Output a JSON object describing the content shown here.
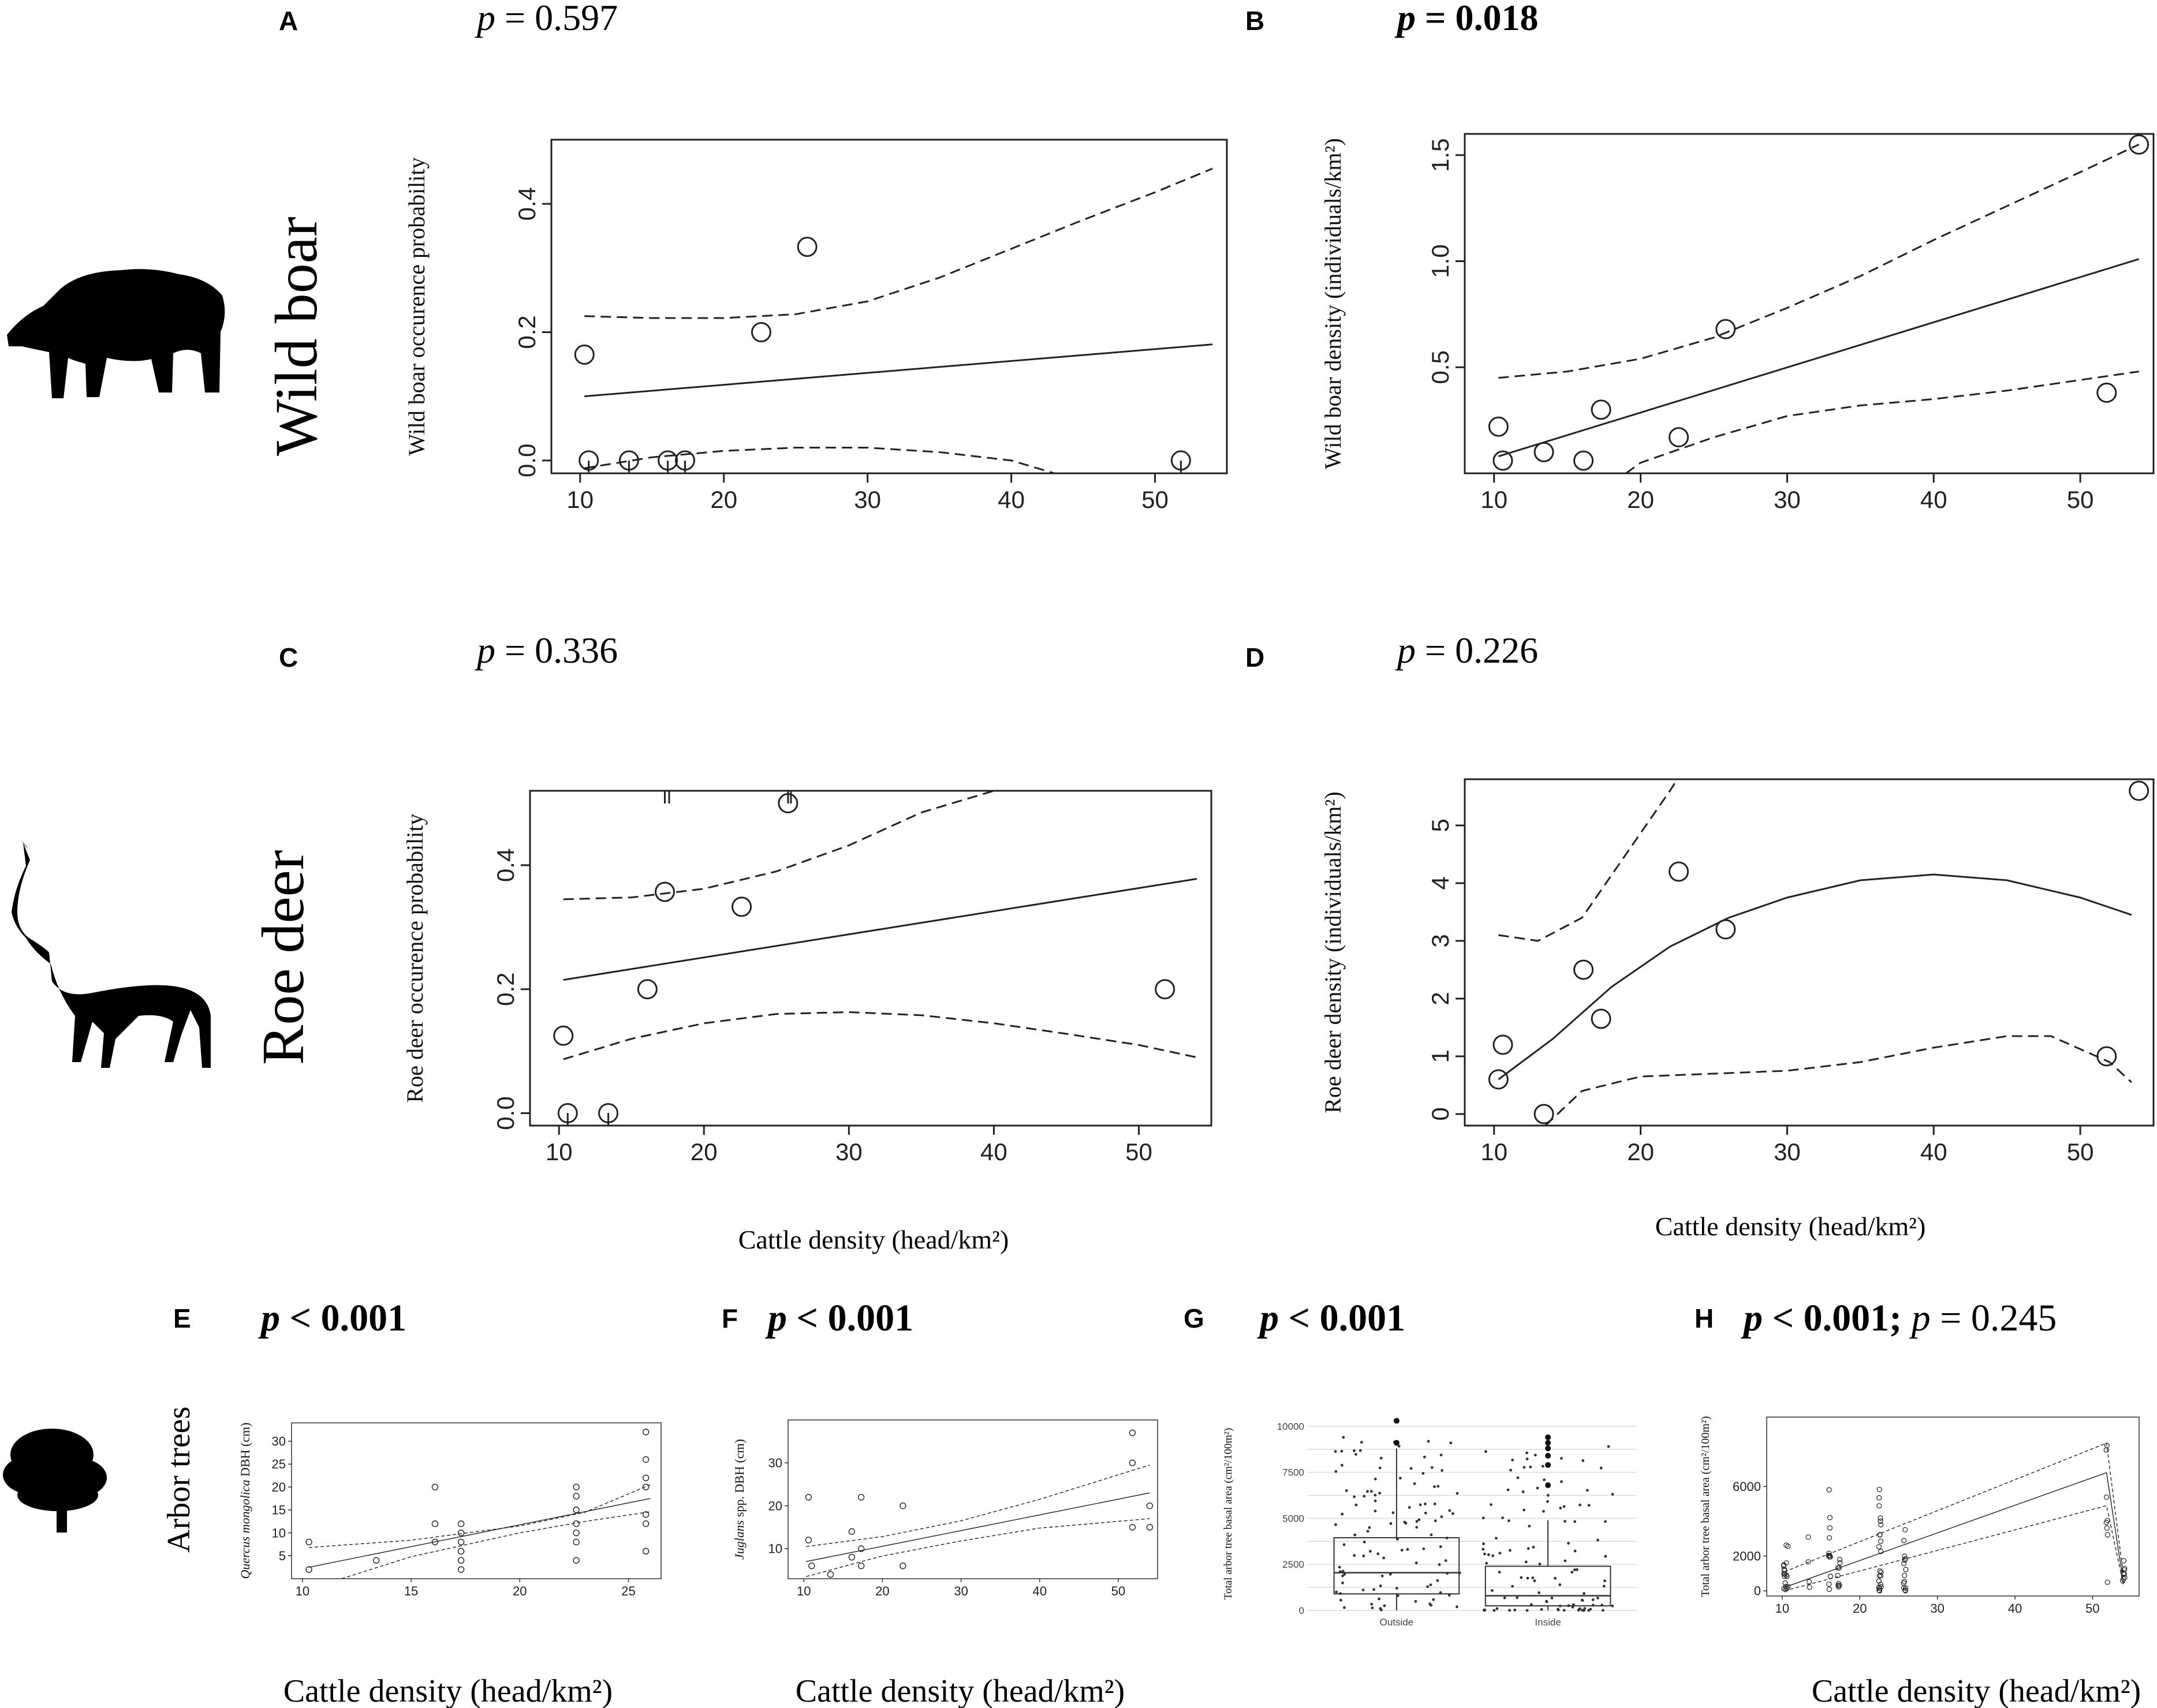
{
  "panels": {
    "A": {
      "letter": "A",
      "p_label": "p",
      "p_text": " = 0.597"
    },
    "B": {
      "letter": "B",
      "p_label": "p",
      "p_text": " = 0.018"
    },
    "C": {
      "letter": "C",
      "p_label": "p",
      "p_text": " = 0.336"
    },
    "D": {
      "letter": "D",
      "p_label": "p",
      "p_text": " = 0.226"
    },
    "E": {
      "letter": "E",
      "p_label": "p",
      "p_text": " < 0.001"
    },
    "F": {
      "letter": "F",
      "p_label": "p",
      "p_text": " < 0.001"
    },
    "G": {
      "letter": "G",
      "p_label": "p",
      "p_text": " < 0.001"
    },
    "H": {
      "letter": "H",
      "p_label": "p",
      "p_text": " < 0.001;",
      "p_label2": "p",
      "p_text2": " = 0.245"
    }
  },
  "species": {
    "wild_boar": "Wild boar",
    "roe_deer": "Roe deer",
    "arbor_trees": "Arbor trees"
  },
  "x_axis_label": "Cattle density (head/km²)",
  "chart_data": [
    {
      "id": "A",
      "type": "scatter",
      "ylabel": "Wild boar occurence probability",
      "xlim": [
        8,
        55
      ],
      "ylim": [
        -0.02,
        0.5
      ],
      "xticks": [
        10,
        20,
        30,
        40,
        50
      ],
      "yticks": [
        0.0,
        0.2,
        0.4
      ],
      "points": [
        [
          10.3,
          0.165
        ],
        [
          10.6,
          0.0
        ],
        [
          13.4,
          0.0
        ],
        [
          16.1,
          0.0
        ],
        [
          17.3,
          0.0
        ],
        [
          22.6,
          0.2
        ],
        [
          25.8,
          0.333
        ],
        [
          51.8,
          0.0
        ]
      ],
      "fit": [
        [
          10.3,
          0.1
        ],
        [
          54,
          0.181
        ]
      ],
      "ci_upper": [
        [
          10.3,
          0.225
        ],
        [
          15,
          0.222
        ],
        [
          20,
          0.222
        ],
        [
          25,
          0.228
        ],
        [
          30,
          0.248
        ],
        [
          35,
          0.285
        ],
        [
          40,
          0.33
        ],
        [
          45,
          0.375
        ],
        [
          50,
          0.418
        ],
        [
          54,
          0.455
        ]
      ],
      "ci_lower": [
        [
          10.3,
          -0.012
        ],
        [
          15,
          0.005
        ],
        [
          20,
          0.015
        ],
        [
          25,
          0.02
        ],
        [
          30,
          0.02
        ],
        [
          35,
          0.013
        ],
        [
          40,
          0.0
        ],
        [
          43,
          -0.02
        ]
      ]
    },
    {
      "id": "B",
      "type": "scatter",
      "ylabel": "Wild boar density (individuals/km²)",
      "xlim": [
        8,
        55
      ],
      "ylim": [
        0,
        1.6
      ],
      "xticks": [
        10,
        20,
        30,
        40,
        50
      ],
      "yticks": [
        0.5,
        1.0,
        1.5
      ],
      "points": [
        [
          10.3,
          0.22
        ],
        [
          10.6,
          0.06
        ],
        [
          13.4,
          0.1
        ],
        [
          16.1,
          0.06
        ],
        [
          17.3,
          0.3
        ],
        [
          22.6,
          0.17
        ],
        [
          25.8,
          0.68
        ],
        [
          51.8,
          0.38
        ],
        [
          54,
          1.55
        ]
      ],
      "fit": [
        [
          10.3,
          0.08
        ],
        [
          54,
          1.01
        ]
      ],
      "ci_upper": [
        [
          10.3,
          0.45
        ],
        [
          15,
          0.48
        ],
        [
          20,
          0.54
        ],
        [
          25,
          0.64
        ],
        [
          30,
          0.78
        ],
        [
          35,
          0.93
        ],
        [
          40,
          1.1
        ],
        [
          45,
          1.26
        ],
        [
          50,
          1.42
        ],
        [
          54,
          1.55
        ]
      ],
      "ci_lower": [
        [
          19,
          0.0
        ],
        [
          20,
          0.05
        ],
        [
          25,
          0.17
        ],
        [
          30,
          0.27
        ],
        [
          35,
          0.32
        ],
        [
          40,
          0.35
        ],
        [
          45,
          0.39
        ],
        [
          50,
          0.44
        ],
        [
          54,
          0.48
        ]
      ]
    },
    {
      "id": "C",
      "type": "scatter",
      "ylabel": "Roe deer occurence probability",
      "xlim": [
        8,
        55
      ],
      "ylim": [
        -0.02,
        0.52
      ],
      "xticks": [
        10,
        20,
        30,
        40,
        50
      ],
      "yticks": [
        0.0,
        0.2,
        0.4
      ],
      "points": [
        [
          10.3,
          0.125
        ],
        [
          10.6,
          0.0
        ],
        [
          13.4,
          0.0
        ],
        [
          16.1,
          0.2
        ],
        [
          17.3,
          0.357
        ],
        [
          22.6,
          0.333
        ],
        [
          25.8,
          0.5
        ],
        [
          51.8,
          0.2
        ]
      ],
      "fit": [
        [
          10.3,
          0.215
        ],
        [
          54,
          0.378
        ]
      ],
      "ci_upper": [
        [
          10.3,
          0.345
        ],
        [
          15,
          0.348
        ],
        [
          20,
          0.362
        ],
        [
          25,
          0.39
        ],
        [
          30,
          0.432
        ],
        [
          35,
          0.485
        ],
        [
          40,
          0.52
        ]
      ],
      "ci_lower": [
        [
          10.3,
          0.087
        ],
        [
          15,
          0.12
        ],
        [
          20,
          0.145
        ],
        [
          25,
          0.16
        ],
        [
          30,
          0.163
        ],
        [
          35,
          0.158
        ],
        [
          40,
          0.145
        ],
        [
          45,
          0.128
        ],
        [
          50,
          0.11
        ],
        [
          54,
          0.09
        ]
      ]
    },
    {
      "id": "D",
      "type": "scatter",
      "ylabel": "Roe deer density (individuals/km²)",
      "xlim": [
        8,
        55
      ],
      "ylim": [
        -0.2,
        5.8
      ],
      "xticks": [
        10,
        20,
        30,
        40,
        50
      ],
      "yticks": [
        0,
        1,
        2,
        3,
        4,
        5
      ],
      "points": [
        [
          10.3,
          0.6
        ],
        [
          10.6,
          1.2
        ],
        [
          13.4,
          0.0
        ],
        [
          16.1,
          2.5
        ],
        [
          17.3,
          1.65
        ],
        [
          22.6,
          4.2
        ],
        [
          25.8,
          3.2
        ],
        [
          51.8,
          1.0
        ],
        [
          54,
          5.6
        ]
      ],
      "fit": [
        [
          10.3,
          0.6
        ],
        [
          14,
          1.3
        ],
        [
          18,
          2.2
        ],
        [
          22,
          2.9
        ],
        [
          26,
          3.4
        ],
        [
          30,
          3.75
        ],
        [
          35,
          4.05
        ],
        [
          40,
          4.15
        ],
        [
          45,
          4.05
        ],
        [
          50,
          3.75
        ],
        [
          53.5,
          3.45
        ]
      ],
      "ci_upper": [
        [
          10.3,
          3.1
        ],
        [
          13,
          3.0
        ],
        [
          16,
          3.4
        ],
        [
          19,
          4.5
        ],
        [
          22,
          5.6
        ],
        [
          22.5,
          5.8
        ]
      ],
      "ci_lower": [
        [
          13.5,
          -0.2
        ],
        [
          16,
          0.4
        ],
        [
          20,
          0.65
        ],
        [
          25,
          0.7
        ],
        [
          30,
          0.75
        ],
        [
          35,
          0.9
        ],
        [
          40,
          1.15
        ],
        [
          45,
          1.35
        ],
        [
          48,
          1.35
        ],
        [
          52,
          0.9
        ],
        [
          53.5,
          0.55
        ]
      ]
    },
    {
      "id": "E",
      "type": "scatter",
      "ylabel_italic": "Quercus mongolica",
      "ylabel_rest": " DBH (cm)",
      "xlim": [
        9.5,
        26.5
      ],
      "ylim": [
        0,
        34
      ],
      "xticks": [
        10,
        15,
        20,
        25
      ],
      "yticks": [
        5,
        10,
        15,
        20,
        25,
        30
      ],
      "points": [
        [
          10.3,
          8
        ],
        [
          10.3,
          2
        ],
        [
          13.4,
          4
        ],
        [
          16.1,
          20
        ],
        [
          16.1,
          12
        ],
        [
          16.1,
          8
        ],
        [
          17.3,
          12
        ],
        [
          17.3,
          10
        ],
        [
          17.3,
          8
        ],
        [
          17.3,
          6
        ],
        [
          17.3,
          4
        ],
        [
          17.3,
          2
        ],
        [
          22.6,
          20
        ],
        [
          22.6,
          18
        ],
        [
          22.6,
          15
        ],
        [
          22.6,
          12
        ],
        [
          22.6,
          10
        ],
        [
          22.6,
          8
        ],
        [
          22.6,
          4
        ],
        [
          25.8,
          32
        ],
        [
          25.8,
          26
        ],
        [
          25.8,
          22
        ],
        [
          25.8,
          20
        ],
        [
          25.8,
          14
        ],
        [
          25.8,
          12
        ],
        [
          25.8,
          6
        ]
      ],
      "fit": [
        [
          10.3,
          2.5
        ],
        [
          26,
          17.5
        ]
      ],
      "ci_upper": [
        [
          10.3,
          6.8
        ],
        [
          15,
          8.4
        ],
        [
          20,
          11.5
        ],
        [
          23,
          14.5
        ],
        [
          26,
          20.5
        ]
      ],
      "ci_lower": [
        [
          11.8,
          0
        ],
        [
          15,
          4.8
        ],
        [
          20,
          10
        ],
        [
          23,
          12.5
        ],
        [
          26,
          14.6
        ]
      ]
    },
    {
      "id": "F",
      "type": "scatter",
      "ylabel_italic": "Juglans",
      "ylabel_rest": " spp. DBH (cm)",
      "xlim": [
        8,
        55
      ],
      "ylim": [
        3,
        40
      ],
      "xticks": [
        10,
        20,
        30,
        40,
        50
      ],
      "yticks": [
        10,
        20,
        30
      ],
      "points": [
        [
          10.6,
          22
        ],
        [
          10.6,
          12
        ],
        [
          11,
          6
        ],
        [
          13.4,
          4
        ],
        [
          16.1,
          14
        ],
        [
          16.1,
          8
        ],
        [
          17.3,
          22
        ],
        [
          17.3,
          10
        ],
        [
          17.3,
          6
        ],
        [
          22.6,
          20
        ],
        [
          22.6,
          6
        ],
        [
          51.8,
          37
        ],
        [
          51.8,
          30
        ],
        [
          51.8,
          15
        ],
        [
          54,
          20
        ],
        [
          54,
          15
        ]
      ],
      "fit": [
        [
          10.3,
          7
        ],
        [
          54,
          23
        ]
      ],
      "ci_upper": [
        [
          10.3,
          10.5
        ],
        [
          20,
          12.8
        ],
        [
          30,
          16.5
        ],
        [
          40,
          21.5
        ],
        [
          54,
          29.5
        ]
      ],
      "ci_lower": [
        [
          10.3,
          3.5
        ],
        [
          20,
          8.3
        ],
        [
          30,
          11.8
        ],
        [
          40,
          14.8
        ],
        [
          54,
          17
        ]
      ]
    },
    {
      "id": "G",
      "type": "box",
      "ylabel": "Total arbor tree basal area (cm²/100m²)",
      "ylim": [
        0,
        10500
      ],
      "yticks": [
        0,
        2500,
        5000,
        7500,
        10000
      ],
      "categories": [
        "Outside",
        "Inside"
      ],
      "boxes": [
        {
          "min": 0,
          "q1": 900,
          "median": 2050,
          "q3": 3950,
          "max": 8800
        },
        {
          "min": 0,
          "q1": 250,
          "median": 800,
          "q3": 2400,
          "max": 4900
        }
      ]
    },
    {
      "id": "H",
      "type": "scatter",
      "ylabel": "Total arbor tree basal area (cm²/100m²)",
      "xlim": [
        8,
        56
      ],
      "ylim": [
        -300,
        10000
      ],
      "xticks": [
        10,
        20,
        30,
        40,
        50
      ],
      "yticks": [
        0,
        2000,
        6000
      ],
      "fit": [
        [
          10.3,
          200
        ],
        [
          51.8,
          6800
        ],
        [
          54,
          400
        ]
      ],
      "ci_upper": [
        [
          10.3,
          1100
        ],
        [
          51.8,
          8500
        ],
        [
          54,
          800
        ]
      ],
      "ci_lower": [
        [
          10.3,
          0
        ],
        [
          51.8,
          4900
        ],
        [
          54,
          300
        ]
      ]
    }
  ]
}
